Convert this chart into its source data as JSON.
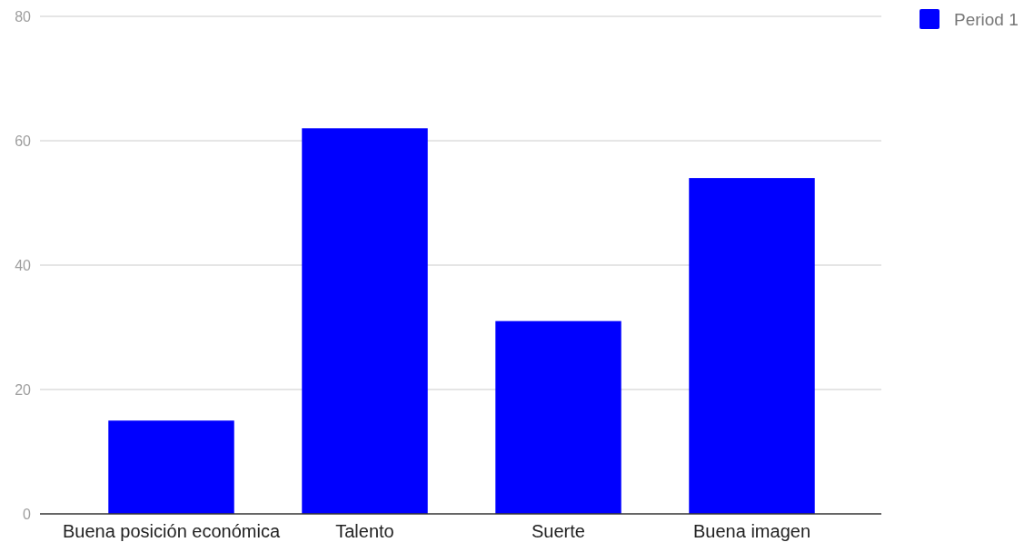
{
  "chart_data": {
    "type": "bar",
    "categories": [
      "Buena posición económica",
      "Talento",
      "Suerte",
      "Buena imagen"
    ],
    "series": [
      {
        "name": "Period 1",
        "color": "#0000ff",
        "values": [
          15,
          62,
          31,
          54
        ]
      }
    ],
    "ylim": [
      0,
      80
    ],
    "yticks": [
      0,
      20,
      40,
      60,
      80
    ],
    "grid": "y",
    "legend": "top right"
  }
}
